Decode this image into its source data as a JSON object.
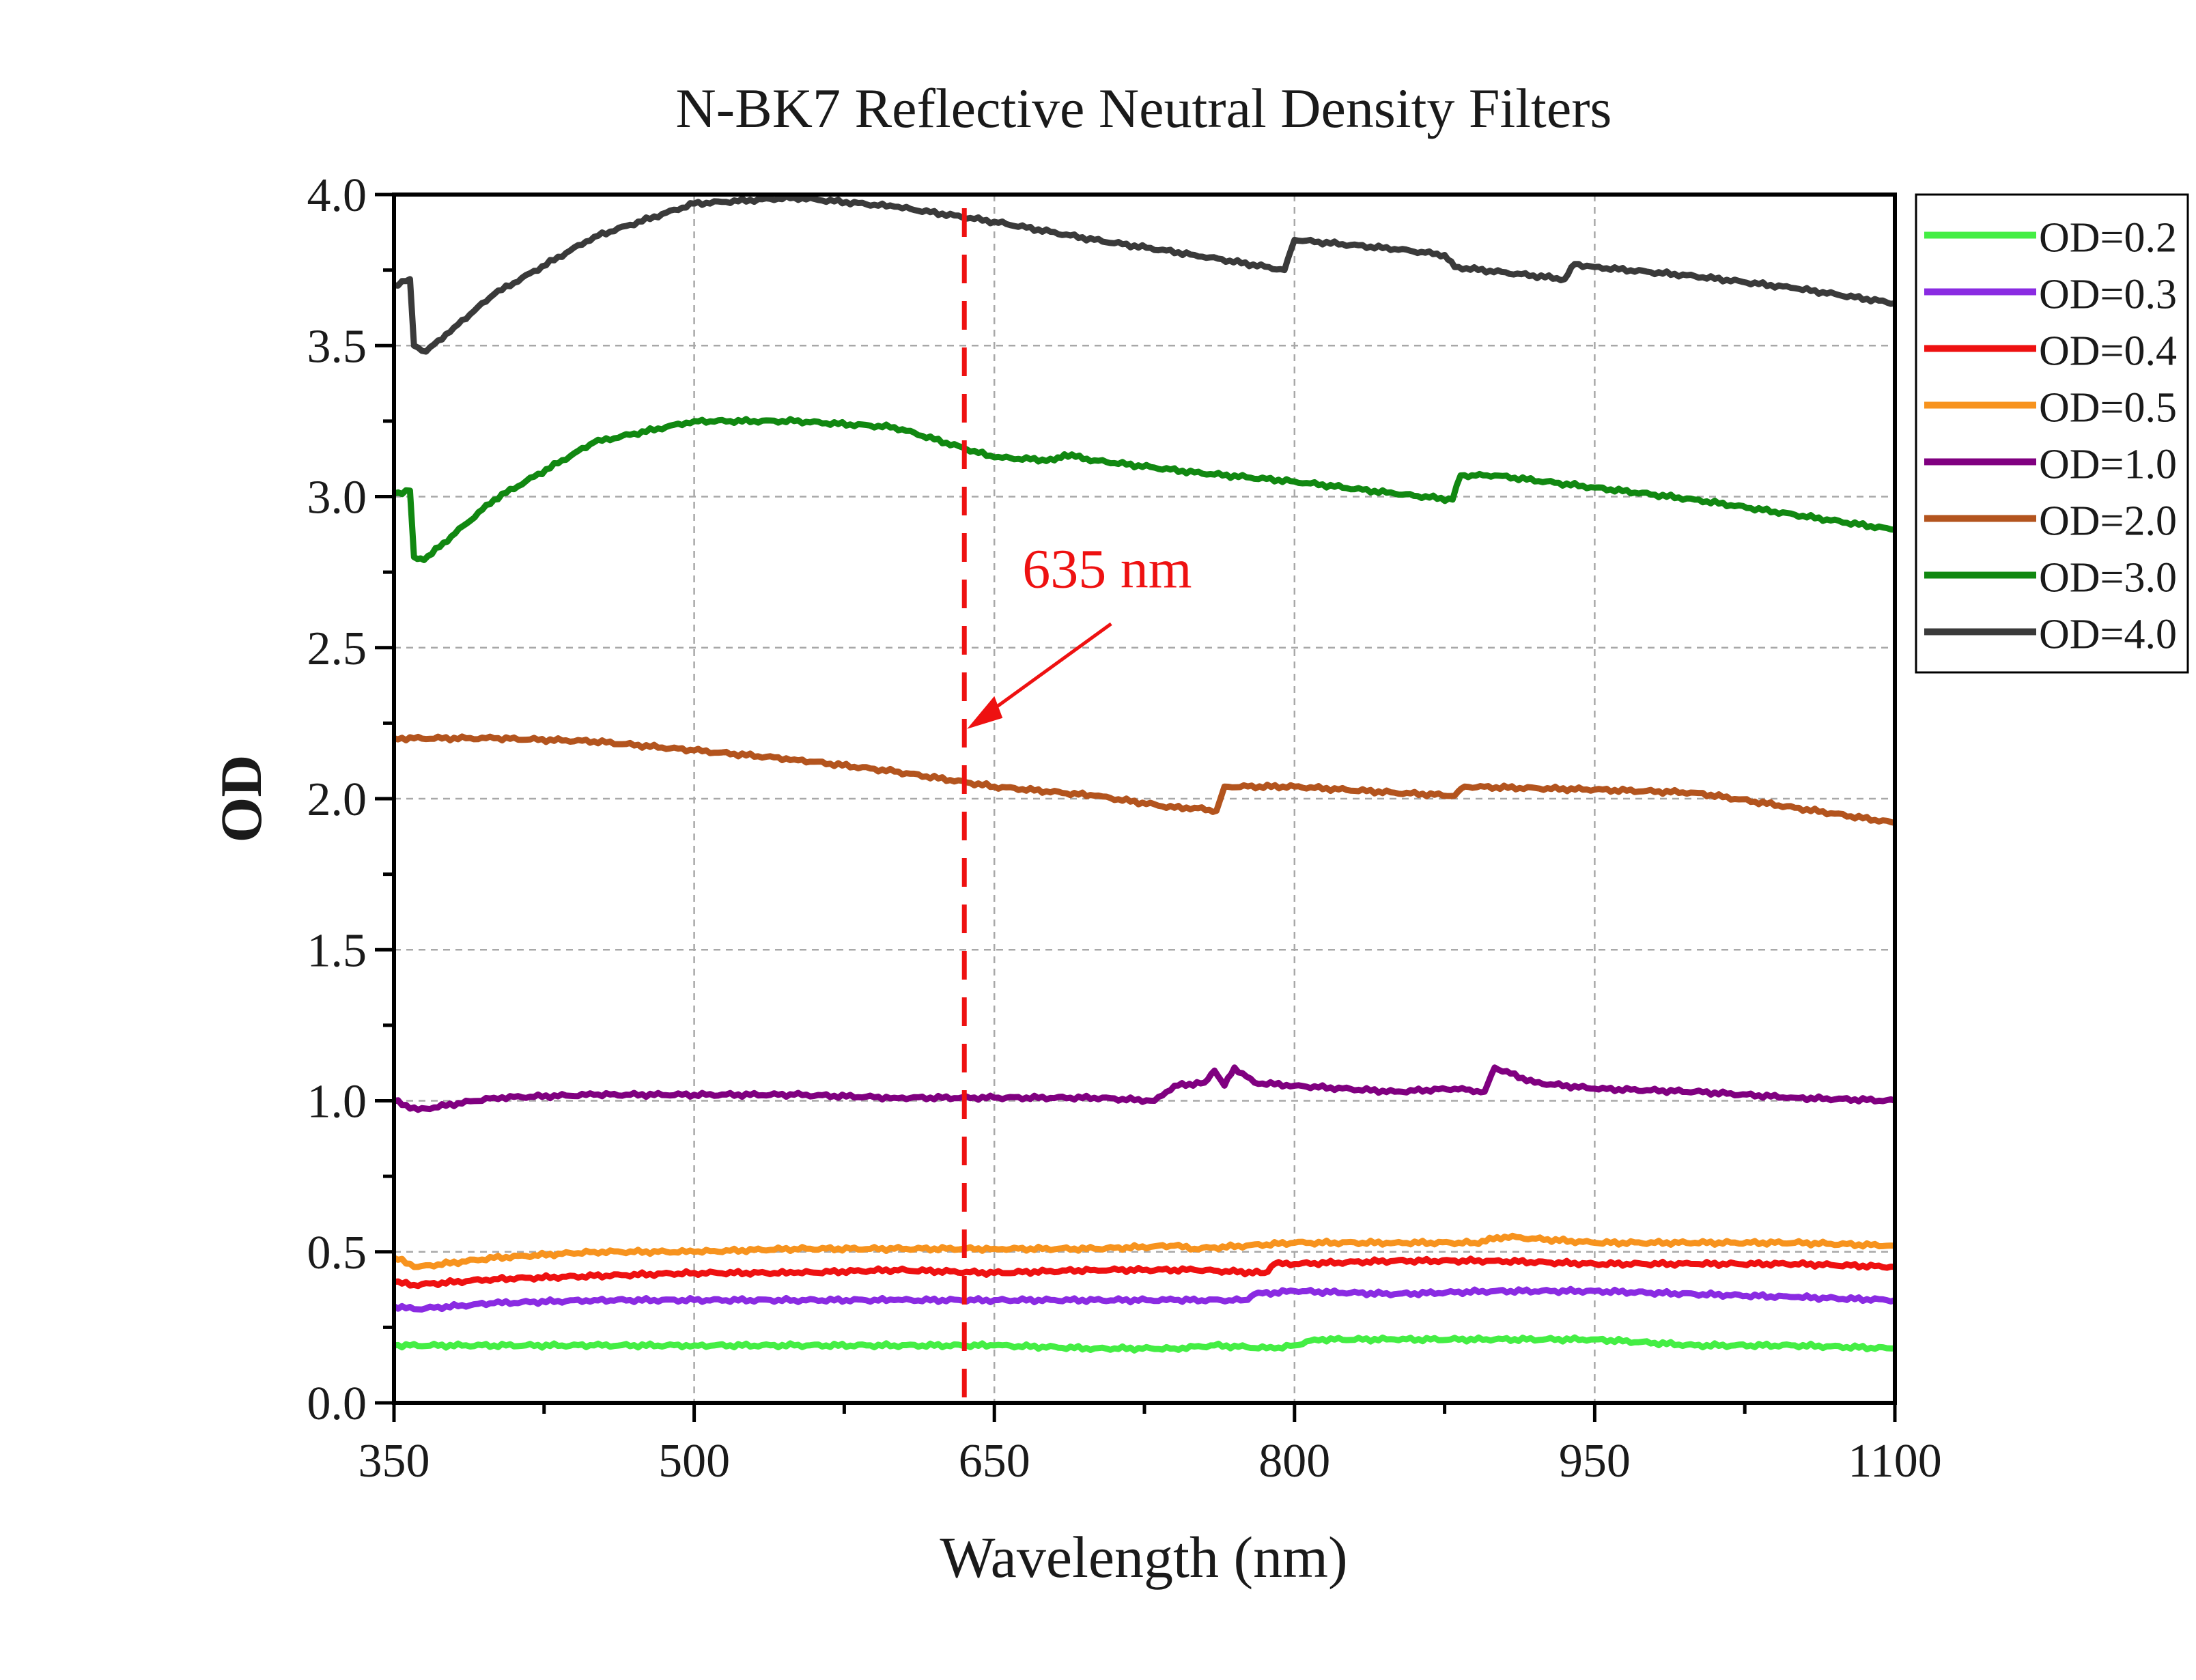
{
  "chart_data": {
    "type": "line",
    "title": "N-BK7 Reflective Neutral Density Filters",
    "xlabel": "Wavelength (nm)",
    "ylabel": "OD",
    "xlim": [
      350,
      1100
    ],
    "ylim": [
      0.0,
      4.0
    ],
    "xticks": [
      350,
      500,
      650,
      800,
      950,
      1100
    ],
    "xtick_labels": [
      "350",
      "500",
      "650",
      "800",
      "950",
      "1100"
    ],
    "yticks": [
      0.0,
      0.5,
      1.0,
      1.5,
      2.0,
      2.5,
      3.0,
      3.5,
      4.0
    ],
    "ytick_labels": [
      "0.0",
      "0.5",
      "1.0",
      "1.5",
      "2.0",
      "2.5",
      "3.0",
      "3.5",
      "4.0"
    ],
    "grid": true,
    "legend_position": "right, outside top",
    "series": [
      {
        "name": "OD=0.2",
        "color": "#44ee44",
        "points": [
          [
            350,
            0.19
          ],
          [
            400,
            0.19
          ],
          [
            450,
            0.19
          ],
          [
            500,
            0.19
          ],
          [
            550,
            0.19
          ],
          [
            600,
            0.19
          ],
          [
            650,
            0.19
          ],
          [
            700,
            0.18
          ],
          [
            740,
            0.18
          ],
          [
            760,
            0.19
          ],
          [
            790,
            0.18
          ],
          [
            800,
            0.19
          ],
          [
            810,
            0.21
          ],
          [
            850,
            0.21
          ],
          [
            900,
            0.21
          ],
          [
            950,
            0.21
          ],
          [
            1000,
            0.19
          ],
          [
            1050,
            0.19
          ],
          [
            1100,
            0.18
          ]
        ]
      },
      {
        "name": "OD=0.3",
        "color": "#8a2be2",
        "points": [
          [
            350,
            0.32
          ],
          [
            360,
            0.31
          ],
          [
            400,
            0.33
          ],
          [
            450,
            0.34
          ],
          [
            500,
            0.34
          ],
          [
            550,
            0.34
          ],
          [
            600,
            0.34
          ],
          [
            650,
            0.34
          ],
          [
            700,
            0.34
          ],
          [
            740,
            0.34
          ],
          [
            775,
            0.34
          ],
          [
            780,
            0.36
          ],
          [
            800,
            0.37
          ],
          [
            850,
            0.36
          ],
          [
            900,
            0.37
          ],
          [
            950,
            0.37
          ],
          [
            1000,
            0.36
          ],
          [
            1050,
            0.35
          ],
          [
            1100,
            0.34
          ]
        ]
      },
      {
        "name": "OD=0.4",
        "color": "#ee1111",
        "points": [
          [
            350,
            0.4
          ],
          [
            360,
            0.39
          ],
          [
            400,
            0.41
          ],
          [
            450,
            0.42
          ],
          [
            500,
            0.43
          ],
          [
            550,
            0.43
          ],
          [
            600,
            0.44
          ],
          [
            650,
            0.43
          ],
          [
            700,
            0.44
          ],
          [
            750,
            0.44
          ],
          [
            785,
            0.43
          ],
          [
            790,
            0.46
          ],
          [
            800,
            0.46
          ],
          [
            850,
            0.47
          ],
          [
            900,
            0.47
          ],
          [
            950,
            0.46
          ],
          [
            1000,
            0.46
          ],
          [
            1050,
            0.46
          ],
          [
            1100,
            0.45
          ]
        ]
      },
      {
        "name": "OD=0.5",
        "color": "#f7931e",
        "points": [
          [
            350,
            0.48
          ],
          [
            362,
            0.45
          ],
          [
            400,
            0.48
          ],
          [
            450,
            0.5
          ],
          [
            500,
            0.5
          ],
          [
            550,
            0.51
          ],
          [
            600,
            0.51
          ],
          [
            650,
            0.51
          ],
          [
            700,
            0.51
          ],
          [
            740,
            0.52
          ],
          [
            750,
            0.51
          ],
          [
            800,
            0.53
          ],
          [
            850,
            0.53
          ],
          [
            890,
            0.53
          ],
          [
            905,
            0.55
          ],
          [
            950,
            0.53
          ],
          [
            1000,
            0.53
          ],
          [
            1050,
            0.53
          ],
          [
            1100,
            0.52
          ]
        ]
      },
      {
        "name": "OD=1.0",
        "color": "#800080",
        "points": [
          [
            350,
            1.0
          ],
          [
            362,
            0.97
          ],
          [
            400,
            1.01
          ],
          [
            450,
            1.02
          ],
          [
            500,
            1.02
          ],
          [
            550,
            1.02
          ],
          [
            600,
            1.01
          ],
          [
            650,
            1.01
          ],
          [
            700,
            1.01
          ],
          [
            730,
            1.0
          ],
          [
            740,
            1.05
          ],
          [
            755,
            1.06
          ],
          [
            760,
            1.1
          ],
          [
            765,
            1.05
          ],
          [
            770,
            1.11
          ],
          [
            780,
            1.06
          ],
          [
            800,
            1.05
          ],
          [
            850,
            1.03
          ],
          [
            880,
            1.04
          ],
          [
            895,
            1.03
          ],
          [
            900,
            1.11
          ],
          [
            920,
            1.06
          ],
          [
            950,
            1.04
          ],
          [
            1000,
            1.03
          ],
          [
            1050,
            1.01
          ],
          [
            1100,
            1.0
          ]
        ]
      },
      {
        "name": "OD=2.0",
        "color": "#b3541e",
        "points": [
          [
            350,
            2.2
          ],
          [
            400,
            2.2
          ],
          [
            450,
            2.19
          ],
          [
            500,
            2.16
          ],
          [
            550,
            2.13
          ],
          [
            600,
            2.09
          ],
          [
            650,
            2.04
          ],
          [
            700,
            2.01
          ],
          [
            740,
            1.97
          ],
          [
            750,
            1.97
          ],
          [
            761,
            1.96
          ],
          [
            765,
            2.04
          ],
          [
            800,
            2.04
          ],
          [
            850,
            2.02
          ],
          [
            880,
            2.01
          ],
          [
            885,
            2.04
          ],
          [
            950,
            2.03
          ],
          [
            1000,
            2.02
          ],
          [
            1050,
            1.97
          ],
          [
            1100,
            1.92
          ]
        ]
      },
      {
        "name": "OD=3.0",
        "color": "#118811",
        "points": [
          [
            350,
            3.01
          ],
          [
            358,
            3.02
          ],
          [
            360,
            2.8
          ],
          [
            365,
            2.79
          ],
          [
            400,
            2.99
          ],
          [
            450,
            3.18
          ],
          [
            500,
            3.25
          ],
          [
            550,
            3.25
          ],
          [
            600,
            3.23
          ],
          [
            650,
            3.13
          ],
          [
            680,
            3.12
          ],
          [
            685,
            3.14
          ],
          [
            700,
            3.12
          ],
          [
            750,
            3.08
          ],
          [
            800,
            3.05
          ],
          [
            850,
            3.01
          ],
          [
            879,
            2.99
          ],
          [
            883,
            3.07
          ],
          [
            900,
            3.07
          ],
          [
            950,
            3.03
          ],
          [
            1000,
            2.99
          ],
          [
            1050,
            2.94
          ],
          [
            1100,
            2.89
          ]
        ]
      },
      {
        "name": "OD=4.0",
        "color": "#3a3a3a",
        "points": [
          [
            350,
            3.7
          ],
          [
            358,
            3.72
          ],
          [
            360,
            3.5
          ],
          [
            366,
            3.48
          ],
          [
            380,
            3.56
          ],
          [
            400,
            3.67
          ],
          [
            450,
            3.86
          ],
          [
            500,
            3.97
          ],
          [
            550,
            3.99
          ],
          [
            600,
            3.96
          ],
          [
            650,
            3.91
          ],
          [
            700,
            3.85
          ],
          [
            750,
            3.8
          ],
          [
            795,
            3.75
          ],
          [
            800,
            3.85
          ],
          [
            850,
            3.82
          ],
          [
            875,
            3.8
          ],
          [
            880,
            3.76
          ],
          [
            935,
            3.72
          ],
          [
            940,
            3.77
          ],
          [
            950,
            3.76
          ],
          [
            1000,
            3.73
          ],
          [
            1050,
            3.69
          ],
          [
            1100,
            3.64
          ]
        ]
      }
    ],
    "annotations": [
      {
        "text": "635 nm",
        "x": 635,
        "color": "#ee1111",
        "style": "dashed vertical line with arrow"
      }
    ]
  }
}
